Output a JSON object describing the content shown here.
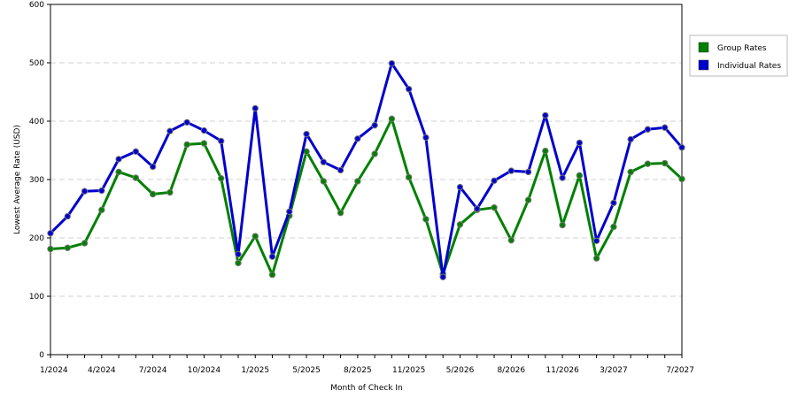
{
  "chart_data": {
    "type": "line",
    "title": "",
    "xlabel": "Month of Check In",
    "ylabel": "Lowest Average Rate (USD)",
    "ylim": [
      0,
      600
    ],
    "yticks": [
      0,
      100,
      200,
      300,
      400,
      500,
      600
    ],
    "grid": "horizontal dashed",
    "legend_position": "right",
    "x_tick_labels": [
      {
        "index": 0,
        "label": "1/2024"
      },
      {
        "index": 3,
        "label": "4/2024"
      },
      {
        "index": 6,
        "label": "7/2024"
      },
      {
        "index": 9,
        "label": "10/2024"
      },
      {
        "index": 12,
        "label": "1/2025"
      },
      {
        "index": 15,
        "label": "5/2025"
      },
      {
        "index": 18,
        "label": "8/2025"
      },
      {
        "index": 21,
        "label": "11/2025"
      },
      {
        "index": 24,
        "label": "5/2026"
      },
      {
        "index": 27,
        "label": "8/2026"
      },
      {
        "index": 30,
        "label": "11/2026"
      },
      {
        "index": 33,
        "label": "3/2027"
      },
      {
        "index": 37,
        "label": "7/2027"
      }
    ],
    "series": [
      {
        "name": "Group Rates",
        "color": "#008000",
        "values": [
          181,
          183,
          191,
          248,
          313,
          303,
          275,
          278,
          360,
          362,
          302,
          157,
          203,
          137,
          238,
          348,
          297,
          243,
          297,
          344,
          404,
          304,
          232,
          138,
          223,
          248,
          252,
          196,
          265,
          349,
          222,
          307,
          165,
          219,
          313,
          327,
          328,
          301
        ]
      },
      {
        "name": "Individual Rates",
        "color": "#0000cc",
        "values": [
          208,
          237,
          280,
          281,
          335,
          348,
          322,
          383,
          398,
          384,
          366,
          172,
          422,
          168,
          245,
          378,
          330,
          316,
          370,
          393,
          499,
          455,
          372,
          133,
          287,
          250,
          298,
          315,
          313,
          410,
          303,
          363,
          195,
          260,
          369,
          386,
          389,
          355
        ]
      }
    ]
  }
}
